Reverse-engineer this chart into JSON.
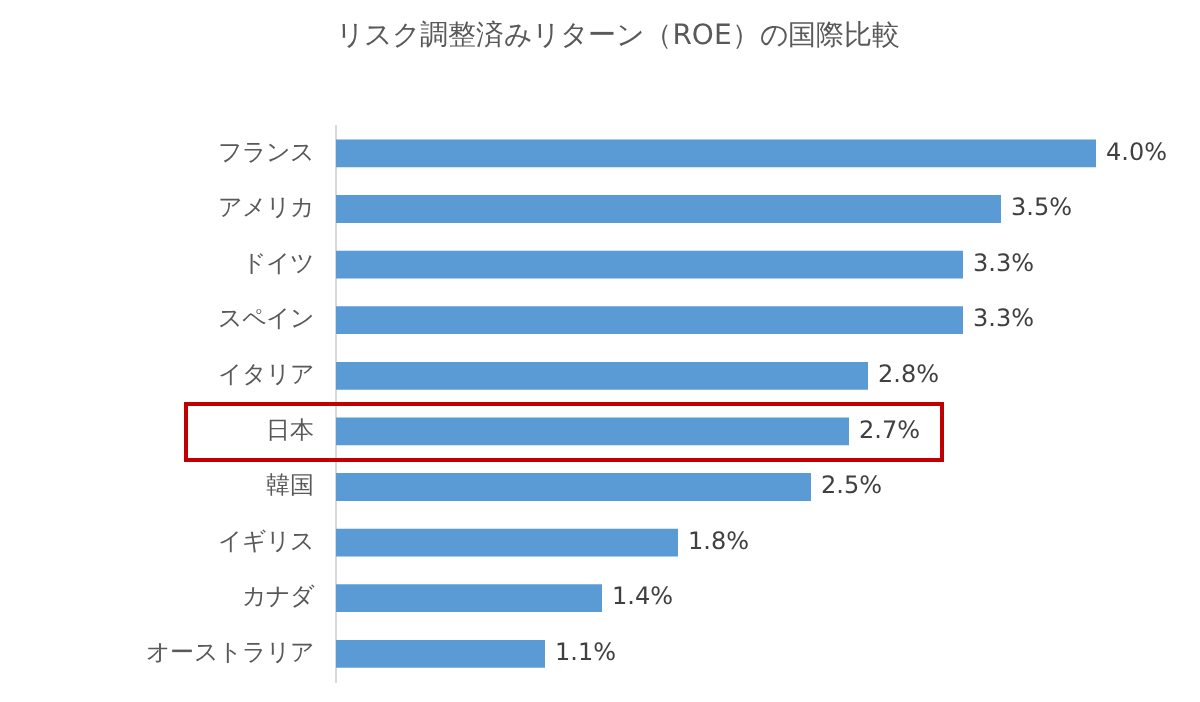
{
  "chart_data": {
    "type": "bar",
    "orientation": "horizontal",
    "title": "リスク調整済みリターン（ROE）の国際比較",
    "categories": [
      "フランス",
      "アメリカ",
      "ドイツ",
      "スペイン",
      "イタリア",
      "日本",
      "韓国",
      "イギリス",
      "カナダ",
      "オーストラリア"
    ],
    "values": [
      4.0,
      3.5,
      3.3,
      3.3,
      2.8,
      2.7,
      2.5,
      1.8,
      1.4,
      1.1
    ],
    "value_labels": [
      "4.0%",
      "3.5%",
      "3.3%",
      "3.3%",
      "2.8%",
      "2.7%",
      "2.5%",
      "1.8%",
      "1.4%",
      "1.1%"
    ],
    "color": "#5b9bd5",
    "tick_labels": "y"
  }
}
